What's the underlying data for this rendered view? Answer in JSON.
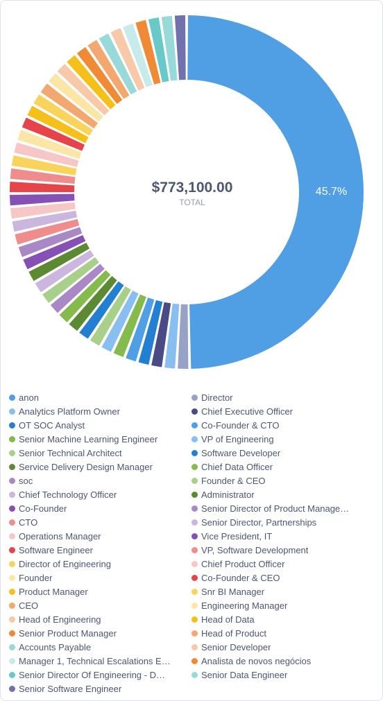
{
  "chart_data": {
    "type": "pie",
    "total_value": "$773,100.00",
    "total_label": "TOTAL",
    "slice_labels": [
      {
        "slice": "anon",
        "text": "45.7%"
      }
    ],
    "slices": [
      {
        "label": "anon",
        "color": "#509ee3",
        "share": 45.7
      },
      {
        "label": "Director",
        "color": "#98a2c6",
        "share": 1.1
      },
      {
        "label": "Analytics Platform Owner",
        "color": "#88bff0",
        "share": 1.1
      },
      {
        "label": "Chief Executive Officer",
        "color": "#4a4b86",
        "share": 1.1
      },
      {
        "label": "OT SOC Analyst",
        "color": "#227fd2",
        "share": 1.1
      },
      {
        "label": "Co-Founder & CTO",
        "color": "#509ee3",
        "share": 1.1
      },
      {
        "label": "Senior Machine Learning Engineer",
        "color": "#84bb4c",
        "share": 1.1
      },
      {
        "label": "VP of Engineering",
        "color": "#88bff0",
        "share": 1.1
      },
      {
        "label": "Senior Technical Architect",
        "color": "#a8d08a",
        "share": 1.1
      },
      {
        "label": "Software Developer",
        "color": "#227fd2",
        "share": 1.1
      },
      {
        "label": "Service Delivery Design Manager",
        "color": "#5c8a33",
        "share": 1.1
      },
      {
        "label": "Chief Data Officer",
        "color": "#84bb4c",
        "share": 1.1
      },
      {
        "label": "soc",
        "color": "#a989c5",
        "share": 1.1
      },
      {
        "label": "Founder & CEO",
        "color": "#a8d08a",
        "share": 1.1
      },
      {
        "label": "Chief Technology Officer",
        "color": "#cbb7de",
        "share": 1.1
      },
      {
        "label": "Administrator",
        "color": "#5c8a33",
        "share": 1.1
      },
      {
        "label": "Co-Founder",
        "color": "#8551b5",
        "share": 1.1
      },
      {
        "label": "Senior Director of Product Manage…",
        "color": "#a989c5",
        "share": 1.1
      },
      {
        "label": "CTO",
        "color": "#ef8c8c",
        "share": 1.1
      },
      {
        "label": "Senior Director, Partnerships",
        "color": "#cbb7de",
        "share": 1.1
      },
      {
        "label": "Operations Manager",
        "color": "#f7c6c6",
        "share": 1.1
      },
      {
        "label": "Vice President, IT",
        "color": "#8551b5",
        "share": 1.1
      },
      {
        "label": "Software Engineer",
        "color": "#e5454a",
        "share": 1.1
      },
      {
        "label": "VP, Software Development",
        "color": "#ef8c8c",
        "share": 1.1
      },
      {
        "label": "Director of Engineering",
        "color": "#f9d45c",
        "share": 1.1
      },
      {
        "label": "Chief Product Officer",
        "color": "#f7c6c6",
        "share": 1.1
      },
      {
        "label": "Founder",
        "color": "#fbe6a6",
        "share": 1.1
      },
      {
        "label": "Co-Founder & CEO",
        "color": "#e5454a",
        "share": 1.1
      },
      {
        "label": "Product Manager",
        "color": "#f5c019",
        "share": 1.1
      },
      {
        "label": "Snr BI Manager",
        "color": "#f9d45c",
        "share": 1.1
      },
      {
        "label": "CEO",
        "color": "#f2a86f",
        "share": 1.1
      },
      {
        "label": "Engineering Manager",
        "color": "#fbe6a6",
        "share": 1.1
      },
      {
        "label": "Head of Engineering",
        "color": "#f8c9a8",
        "share": 1.1
      },
      {
        "label": "Head of Data",
        "color": "#f5c019",
        "share": 1.1
      },
      {
        "label": "Senior Product Manager",
        "color": "#f08a35",
        "share": 1.1
      },
      {
        "label": "Head of Product",
        "color": "#f2a86f",
        "share": 1.1
      },
      {
        "label": "Accounts Payable",
        "color": "#98d9d9",
        "share": 1.1
      },
      {
        "label": "Senior Developer",
        "color": "#f8c9a8",
        "share": 1.1
      },
      {
        "label": "Manager 1, Technical Escalations E…",
        "color": "#c7ebeb",
        "share": 1.1
      },
      {
        "label": "Analista de novos negócios",
        "color": "#f08a35",
        "share": 1.1
      },
      {
        "label": "Senior Director Of Engineering - D…",
        "color": "#69c8c8",
        "share": 1.1
      },
      {
        "label": "Senior Data Engineer",
        "color": "#98d9d9",
        "share": 1.1
      },
      {
        "label": "Senior Software Engineer",
        "color": "#7172ad",
        "share": 1.1
      }
    ],
    "donut_order": [
      "anon",
      "Director",
      "Analytics Platform Owner",
      "Chief Executive Officer",
      "OT SOC Analyst",
      "Co-Founder & CTO",
      "Senior Machine Learning Engineer",
      "VP of Engineering",
      "Senior Technical Architect",
      "Software Developer",
      "Service Delivery Design Manager",
      "Chief Data Officer",
      "soc",
      "Founder & CEO",
      "Chief Technology Officer",
      "Administrator",
      "Co-Founder",
      "Senior Director of Product Manage…",
      "CTO",
      "Senior Director, Partnerships",
      "Operations Manager",
      "Vice President, IT",
      "Software Engineer",
      "VP, Software Development",
      "Director of Engineering",
      "Chief Product Officer",
      "Founder",
      "Co-Founder & CEO",
      "Product Manager",
      "Snr BI Manager",
      "CEO",
      "Engineering Manager",
      "Head of Engineering",
      "Head of Data",
      "Senior Product Manager",
      "Head of Product",
      "Accounts Payable",
      "Senior Developer",
      "Manager 1, Technical Escalations E…",
      "Analista de novos negócios",
      "Senior Director Of Engineering - D…",
      "Senior Data Engineer",
      "Senior Software Engineer"
    ]
  }
}
